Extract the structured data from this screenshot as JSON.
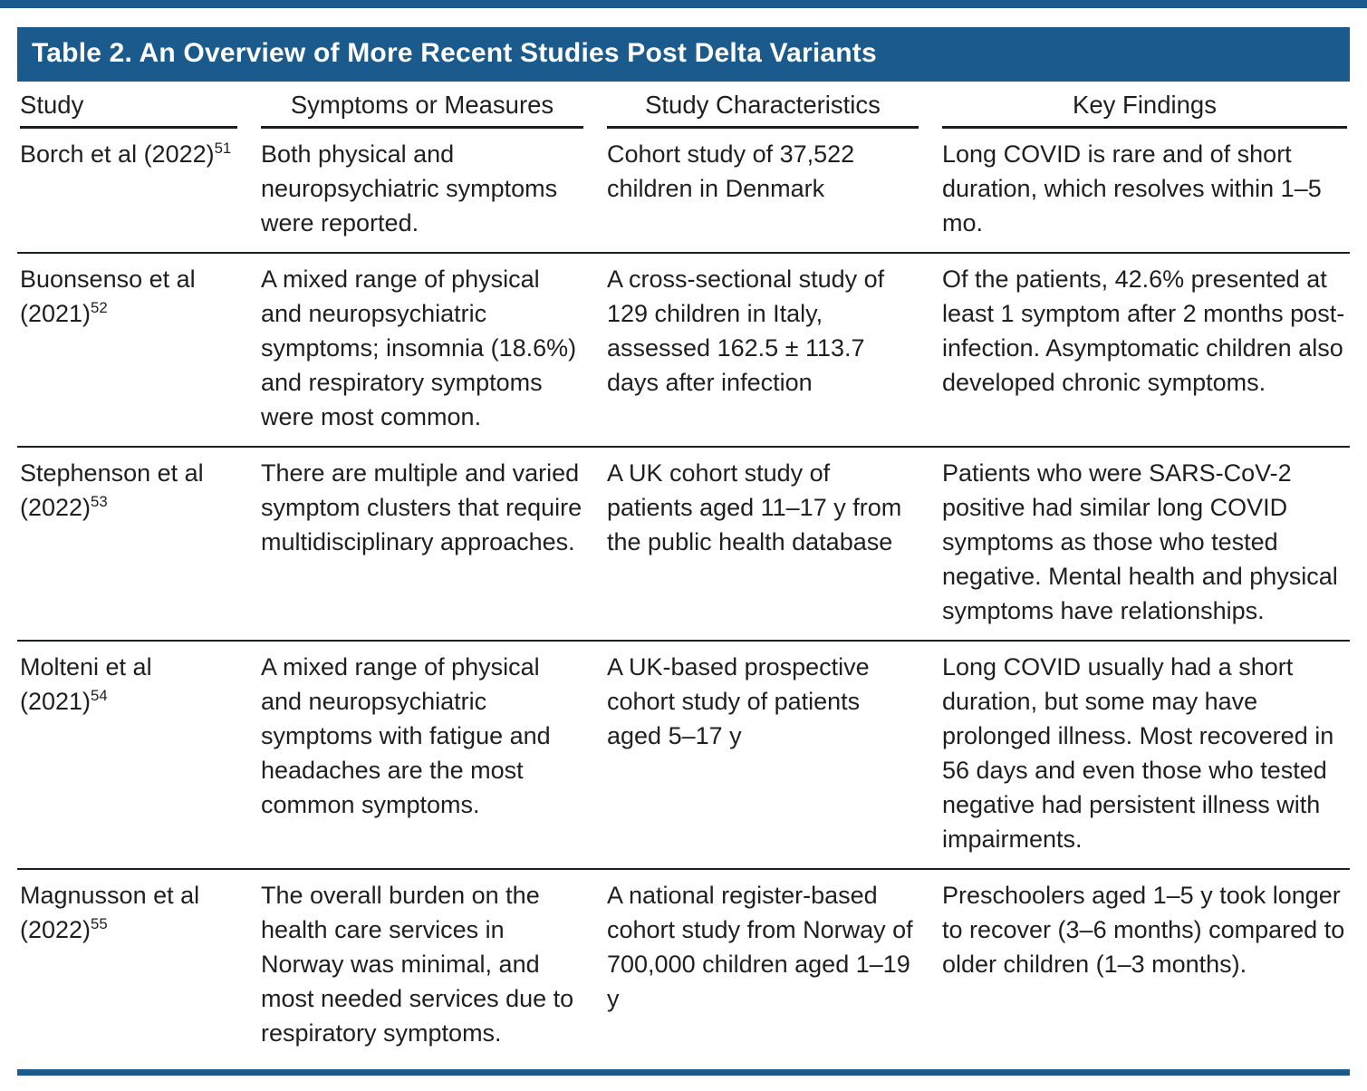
{
  "page": {
    "accent_color": "#1a5a8c",
    "rule_color": "#1a1f26",
    "text_color": "#1f1f1f"
  },
  "table": {
    "title": "Table 2. An Overview of More Recent Studies Post Delta Variants",
    "headers": [
      "Study",
      "Symptoms or Measures",
      "Study Characteristics",
      "Key Findings"
    ],
    "rows": [
      {
        "study": "Borch et al (2022)",
        "ref": "51",
        "symptoms": "Both physical and neuropsychiatric symptoms were reported.",
        "characteristics": "Cohort study of 37,522 children in Denmark",
        "findings": "Long COVID is rare and of short duration, which resolves within 1–5 mo."
      },
      {
        "study": "Buonsenso et al (2021)",
        "ref": "52",
        "symptoms": "A mixed range of physical and neuropsychiatric symptoms; insomnia (18.6%) and respiratory symptoms were most common.",
        "characteristics": "A cross-sectional study of 129 children in Italy, assessed 162.5 ± 113.7 days after infection",
        "findings": "Of the patients, 42.6% presented at least 1 symptom after 2 months post-infection. Asymptomatic children also developed chronic symptoms."
      },
      {
        "study": "Stephenson et al (2022)",
        "ref": "53",
        "symptoms": "There are multiple and varied symptom clusters that require multidisciplinary approaches.",
        "characteristics": "A UK cohort study of patients aged 11–17 y from the public health database",
        "findings": "Patients who were SARS-CoV-2 positive had similar long COVID symptoms as those who tested negative. Mental health and physical symptoms have relationships."
      },
      {
        "study": "Molteni et al (2021)",
        "ref": "54",
        "symptoms": "A mixed range of physical and neuropsychiatric symptoms with fatigue and headaches are the most common symptoms.",
        "characteristics": "A UK-based prospective cohort study of patients aged 5–17 y",
        "findings": "Long COVID usually had a short duration, but some may have prolonged illness. Most recovered in 56 days and even those who tested negative had persistent illness with impairments."
      },
      {
        "study": "Magnusson et al (2022)",
        "ref": "55",
        "symptoms": "The overall burden on the health care services in Norway was minimal, and most needed services due to respiratory symptoms.",
        "characteristics": "A national register-based cohort study from Norway of 700,000 children aged 1–19 y",
        "findings": "Preschoolers aged 1–5 y took longer to recover (3–6 months) compared to older children (1–3 months)."
      }
    ]
  }
}
